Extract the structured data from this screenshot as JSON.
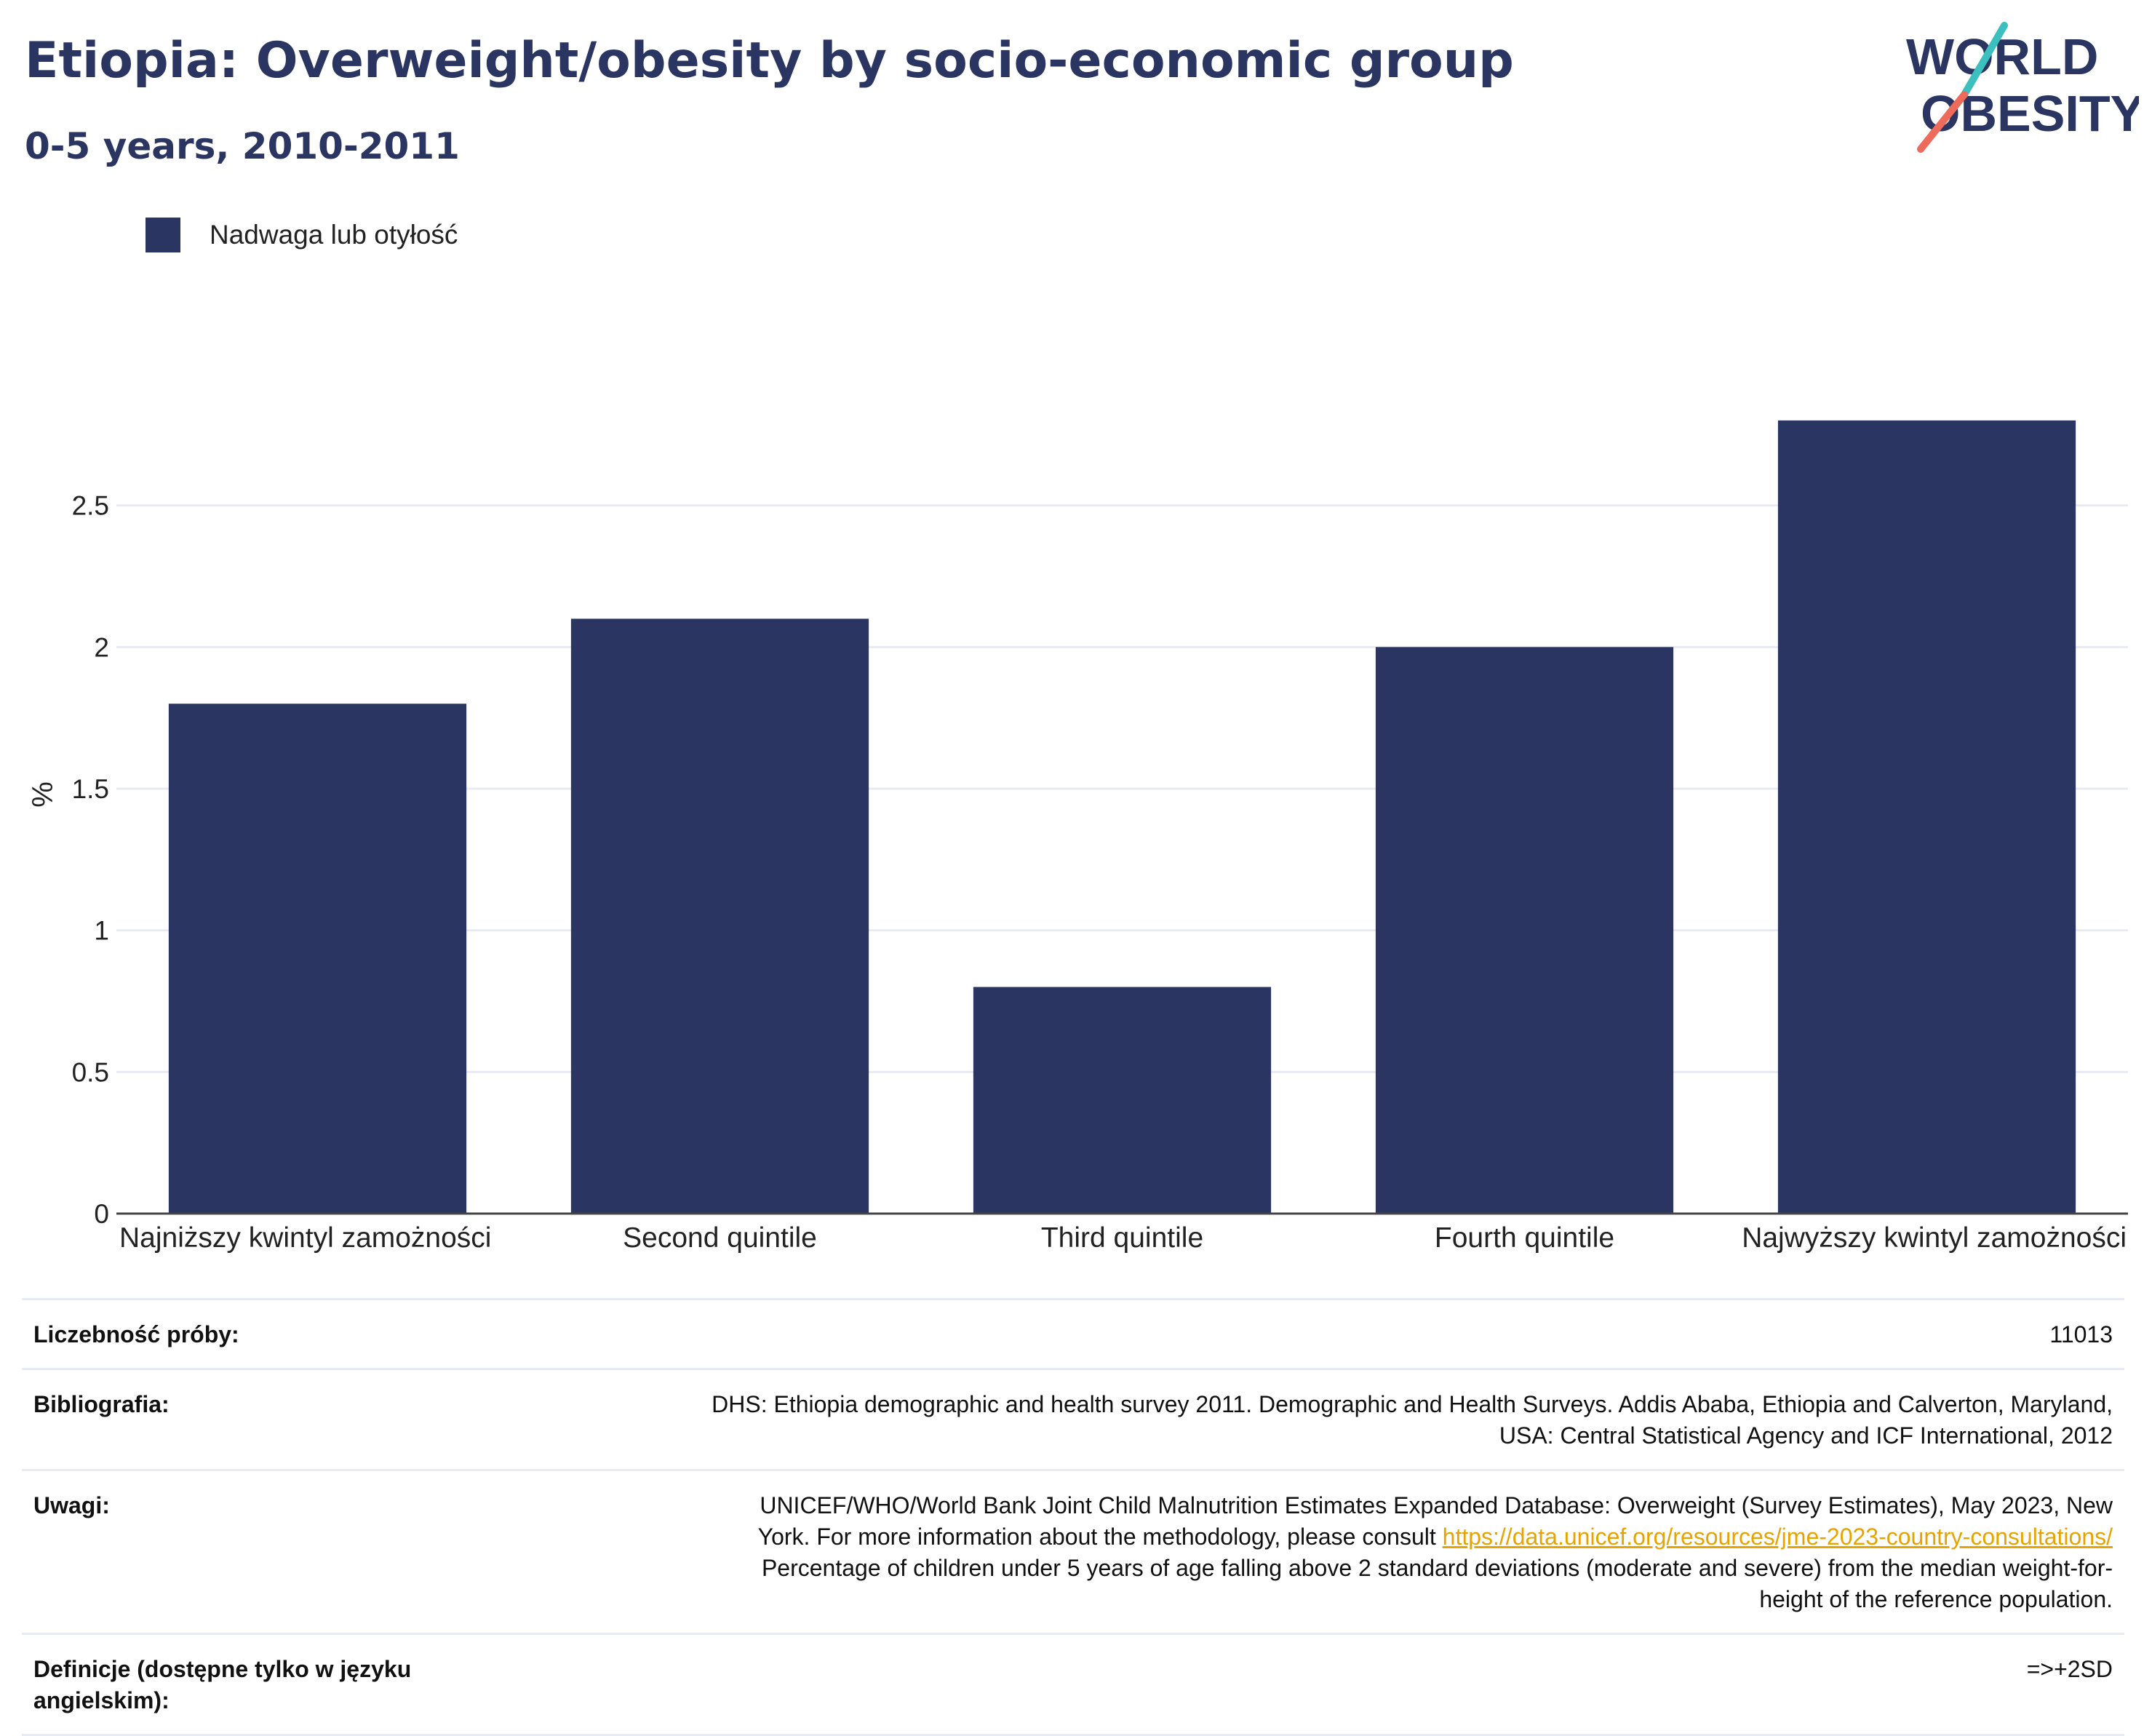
{
  "header": {
    "title": "Etiopia: Overweight/obesity by socio-economic group",
    "subtitle": "0-5 years, 2010-2011",
    "logo_line1": "WORLD",
    "logo_line2": "OBESITY"
  },
  "legend": {
    "label": "Nadwaga lub otyłość",
    "color": "#2a3661"
  },
  "chart_data": {
    "type": "bar",
    "categories": [
      "Najniższy kwintyl zamożności",
      "Second quintile",
      "Third quintile",
      "Fourth quintile",
      "Najwyższy kwintyl zamożności"
    ],
    "series": [
      {
        "name": "Nadwaga lub otyłość",
        "values": [
          1.8,
          2.1,
          0.8,
          2.0,
          2.8
        ]
      }
    ],
    "ylabel": "%",
    "ylim": [
      0,
      3.0
    ],
    "yticks": [
      0,
      0.5,
      1,
      1.5,
      2,
      2.5
    ],
    "ytick_labels": [
      "0",
      "0.5",
      "1",
      "1.5",
      "2",
      "2.5"
    ],
    "grid": true,
    "bar_color": "#2a3661",
    "legend_position": "top-left"
  },
  "meta": {
    "sample_label": "Liczebność próby:",
    "sample_value": "11013",
    "biblio_label": "Bibliografia:",
    "biblio_line1": "DHS: Ethiopia demographic and health survey 2011. Demographic and Health Surveys. Addis Ababa, Ethiopia and Calverton, Maryland,",
    "biblio_line2": "USA: Central Statistical Agency and ICF International, 2012",
    "notes_label": "Uwagi:",
    "notes_line1": "UNICEF/WHO/World Bank Joint Child Malnutrition Estimates Expanded Database: Overweight (Survey Estimates), May 2023, New",
    "notes_line2_text": "York. For more information about the methodology, please consult ",
    "notes_link": "https://data.unicef.org/resources/jme-2023-country-consultations/",
    "notes_line3": "Percentage of children under 5 years of age falling above 2 standard deviations (moderate and severe) from the median weight-for-",
    "notes_line4": "height of the reference population.",
    "definitions_label_line1": "Definicje (dostępne tylko w języku",
    "definitions_label_line2": "angielskim):",
    "definitions_value": "=>+2SD"
  },
  "colors": {
    "brand_navy": "#2a3661",
    "logo_teal": "#3cbfbf",
    "logo_coral": "#ee6a5b",
    "link": "#e7a400"
  }
}
